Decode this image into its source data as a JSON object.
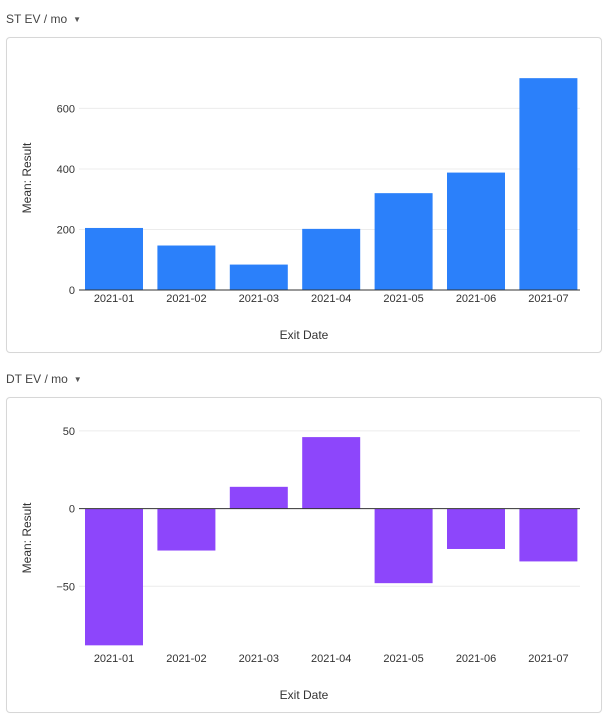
{
  "panels": [
    {
      "title": "ST EV / mo",
      "color": "#2b80fa",
      "xlabel": "Exit Date",
      "ylabel": "Mean: Result"
    },
    {
      "title": "DT EV / mo",
      "color": "#8d46fb",
      "xlabel": "Exit Date",
      "ylabel": "Mean: Result"
    }
  ],
  "chart_data": [
    {
      "type": "bar",
      "title": "ST EV / mo",
      "categories": [
        "2021-01",
        "2021-02",
        "2021-03",
        "2021-04",
        "2021-05",
        "2021-06",
        "2021-07"
      ],
      "values": [
        205,
        147,
        84,
        202,
        320,
        388,
        700
      ],
      "xlabel": "Exit Date",
      "ylabel": "Mean: Result",
      "ylim": [
        0,
        760
      ],
      "yticks": [
        0,
        200,
        400,
        600
      ],
      "grid": true
    },
    {
      "type": "bar",
      "title": "DT EV / mo",
      "categories": [
        "2021-01",
        "2021-02",
        "2021-03",
        "2021-04",
        "2021-05",
        "2021-06",
        "2021-07"
      ],
      "values": [
        -88,
        -27,
        14,
        46,
        -48,
        -26,
        -34
      ],
      "xlabel": "Exit Date",
      "ylabel": "Mean: Result",
      "ylim": [
        -91,
        57
      ],
      "yticks": [
        -50,
        0,
        50
      ],
      "grid": true
    }
  ]
}
